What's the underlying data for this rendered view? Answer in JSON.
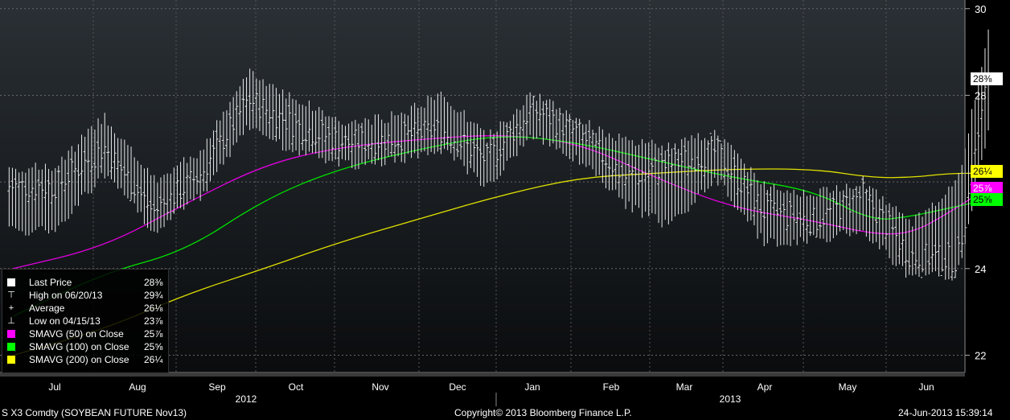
{
  "chart_data": {
    "type": "bar",
    "subtype": "ohlc-with-moving-averages",
    "ylim": [
      21.6,
      30.2
    ],
    "y_ticks": [
      "30",
      "28",
      "24",
      "22"
    ],
    "x_month_labels": [
      "Jul",
      "Aug",
      "Sep",
      "Oct",
      "Nov",
      "Dec",
      "Jan",
      "Feb",
      "Mar",
      "Apr",
      "May",
      "Jun"
    ],
    "x_year_labels": [
      "2012",
      "2013"
    ],
    "grid": true,
    "legend_position": "bottom-left",
    "price_series": {
      "name": "Last Price",
      "color": "#e8e8e8",
      "x": [
        0.0,
        0.6,
        1.2,
        1.8,
        2.4,
        3.0,
        3.6,
        4.2,
        4.8,
        5.4,
        6.0,
        6.6,
        7.2,
        7.8,
        8.4,
        9.0,
        9.6,
        10.2,
        10.8,
        11.4,
        11.8
      ],
      "close": [
        25.9,
        26.8,
        25.3,
        26.2,
        27.9,
        27.3,
        26.9,
        27.0,
        27.2,
        26.5,
        27.7,
        27.1,
        26.1,
        26.4,
        26.7,
        25.3,
        25.1,
        25.7,
        24.3,
        24.2,
        28.6
      ],
      "high": [
        26.2,
        27.4,
        25.9,
        26.6,
        28.4,
        27.8,
        27.2,
        27.4,
        27.9,
        26.9,
        27.9,
        27.3,
        26.8,
        26.7,
        27.0,
        25.8,
        25.6,
        25.9,
        24.9,
        25.9,
        29.4
      ],
      "low": [
        25.0,
        26.3,
        25.0,
        25.8,
        27.4,
        26.8,
        26.5,
        26.6,
        26.9,
        26.0,
        27.2,
        26.6,
        25.6,
        25.1,
        26.2,
        24.7,
        24.8,
        25.0,
        23.9,
        24.0,
        27.4
      ]
    },
    "moving_averages": [
      {
        "name": "SMAVG (50) on Close",
        "color": "#e000e0",
        "x": [
          -0.5,
          0.6,
          1.6,
          2.6,
          3.5,
          4.6,
          5.6,
          6.6,
          7.6,
          8.6,
          9.6,
          10.3,
          10.8,
          11.3,
          11.8
        ],
        "y": [
          24.0,
          24.5,
          25.5,
          26.4,
          26.8,
          27.0,
          27.1,
          26.9,
          26.1,
          25.4,
          25.1,
          24.8,
          24.8,
          25.3,
          25.9
        ]
      },
      {
        "name": "SMAVG (100) on Close",
        "color": "#00e000",
        "x": [
          -0.5,
          0.6,
          1.6,
          2.6,
          3.5,
          4.6,
          5.6,
          6.6,
          7.6,
          8.6,
          9.6,
          10.3,
          10.8,
          11.3,
          11.8
        ],
        "y": [
          22.9,
          23.9,
          24.4,
          25.6,
          26.3,
          26.8,
          27.1,
          26.9,
          26.5,
          26.1,
          25.8,
          25.1,
          25.2,
          25.4,
          25.6
        ]
      },
      {
        "name": "SMAVG (200) on Close",
        "color": "#e0e000",
        "x": [
          -0.5,
          0.6,
          1.6,
          2.6,
          3.5,
          4.6,
          5.6,
          6.6,
          7.6,
          8.6,
          9.6,
          10.3,
          10.8,
          11.3,
          11.8
        ],
        "y": [
          22.0,
          22.6,
          23.4,
          24.0,
          24.6,
          25.2,
          25.7,
          26.1,
          26.2,
          26.3,
          26.3,
          26.1,
          26.1,
          26.2,
          26.2
        ]
      }
    ]
  },
  "axis_tags": [
    {
      "text": "28⅜",
      "value": 28.375,
      "bg": "#ffffff",
      "fg": "#000000"
    },
    {
      "text": "26¼",
      "value": 26.25,
      "bg": "#ffff00",
      "fg": "#000000"
    },
    {
      "text": "25⅞",
      "value": 25.85,
      "bg": "#ff00ff",
      "fg": "#ffffff"
    },
    {
      "text": "25⅝",
      "value": 25.6,
      "bg": "#00ff00",
      "fg": "#000000"
    }
  ],
  "legend": [
    {
      "glyph": "square",
      "label": "Last Price",
      "value": "28⅜",
      "color": "#ffffff"
    },
    {
      "glyph": "high",
      "label": "High on 06/20/13",
      "value": "29¾",
      "color": "#ffffff"
    },
    {
      "glyph": "avg",
      "label": "Average",
      "value": "26⅛",
      "color": "#ffffff"
    },
    {
      "glyph": "low",
      "label": "Low on 04/15/13",
      "value": "23⅞",
      "color": "#ffffff"
    },
    {
      "glyph": "square",
      "label": "SMAVG (50) on Close",
      "value": "25⅞",
      "color": "#ff00ff"
    },
    {
      "glyph": "square",
      "label": "SMAVG (100) on Close",
      "value": "25⅝",
      "color": "#00ff00"
    },
    {
      "glyph": "square",
      "label": "SMAVG (200) on Close",
      "value": "26¼",
      "color": "#ffff00"
    }
  ],
  "footer": {
    "ticker": "S X3 Comdty (SOYBEAN FUTURE    Nov13)",
    "copyright": "Copyright© 2013 Bloomberg Finance L.P.",
    "timestamp": "24-Jun-2013 15:39:14"
  }
}
